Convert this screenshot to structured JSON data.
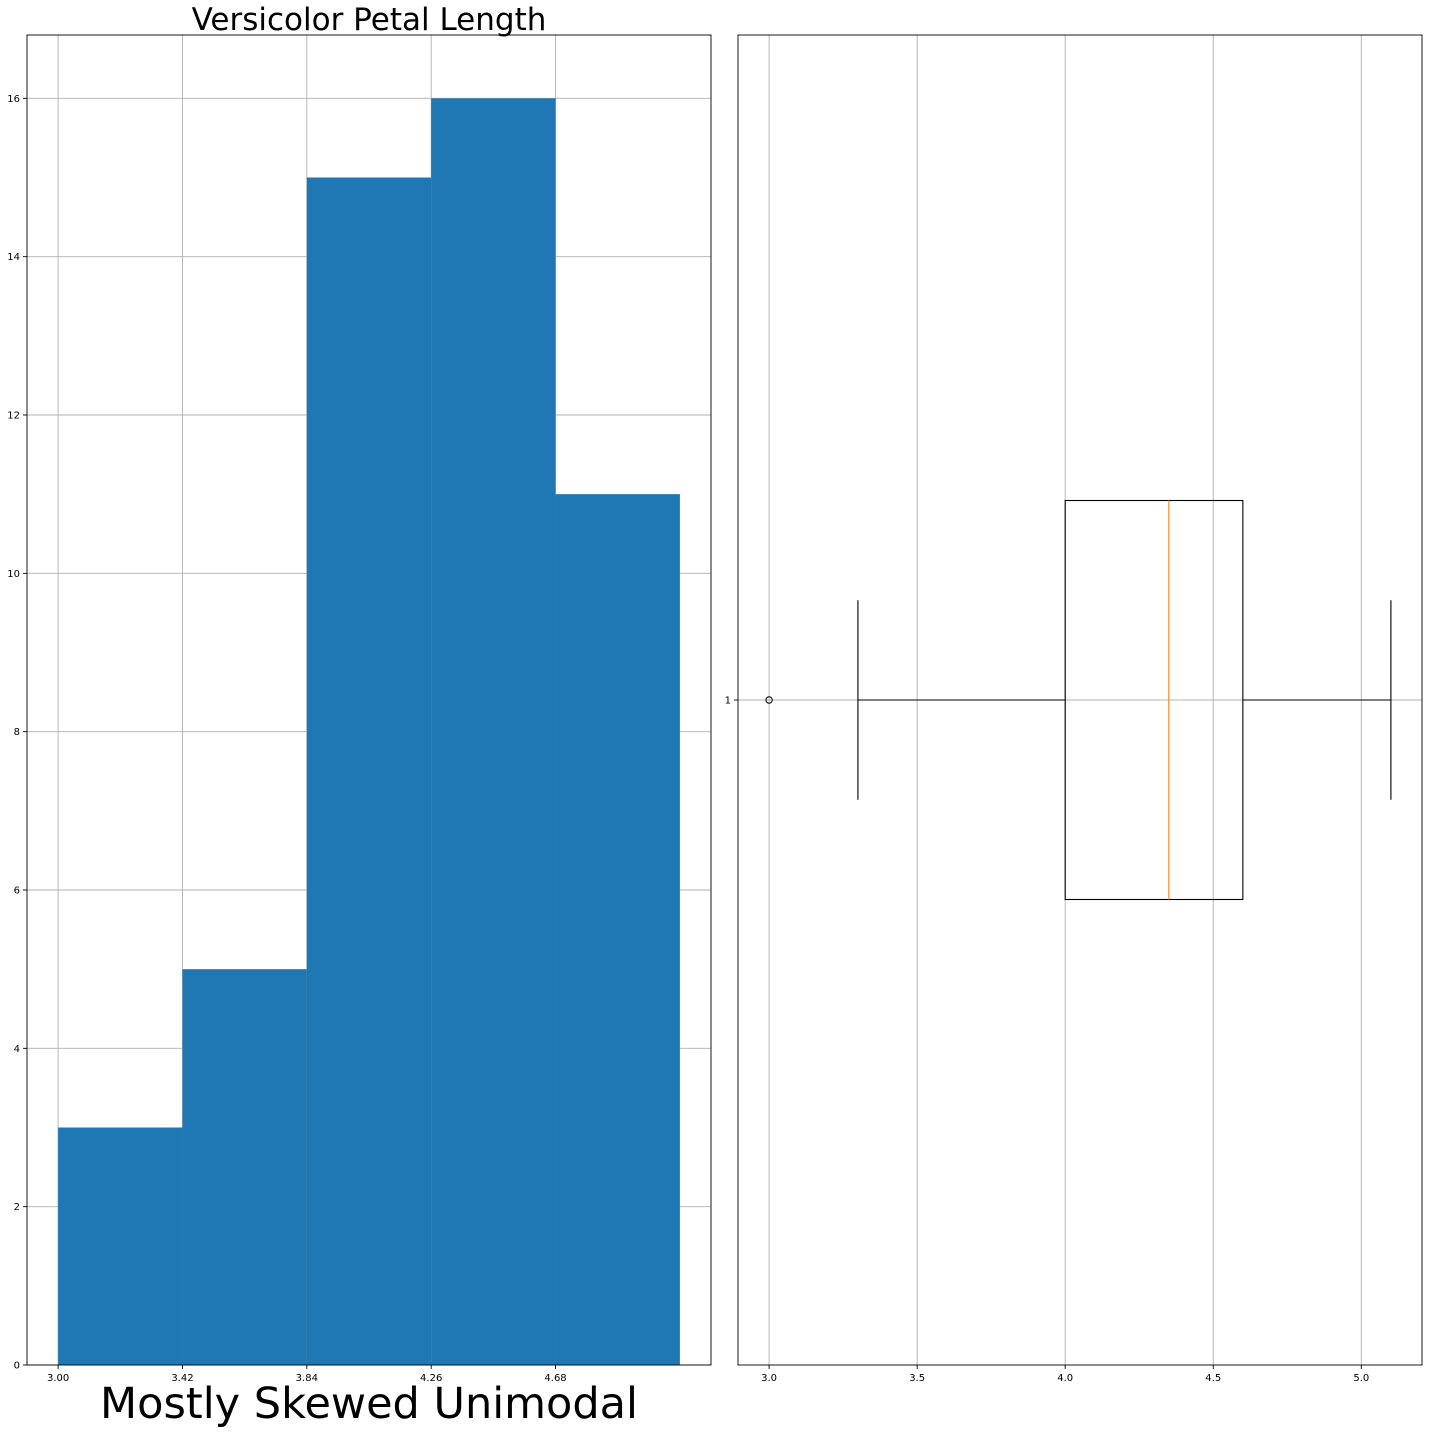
{
  "chart_data": [
    {
      "type": "histogram",
      "title": "Versicolor Petal Length",
      "xlabel": "Mostly Skewed Unimodal",
      "ylabel": "",
      "bin_edges": [
        3.0,
        3.42,
        3.84,
        4.26,
        4.68,
        5.1
      ],
      "counts": [
        3,
        5,
        15,
        16,
        11
      ],
      "xticks": [
        "3.00",
        "3.42",
        "3.84",
        "4.26",
        "4.68"
      ],
      "xtick_values": [
        3.0,
        3.42,
        3.84,
        4.26,
        4.68
      ],
      "yticks": [
        0,
        2,
        4,
        6,
        8,
        10,
        12,
        14,
        16
      ],
      "xlim": [
        2.895,
        5.205
      ],
      "ylim": [
        0,
        16.8
      ],
      "grid": true,
      "color": "#1f77b4"
    },
    {
      "type": "boxplot",
      "orientation": "horizontal",
      "position_label": "1",
      "whisker_low": 3.3,
      "q1": 4.0,
      "median": 4.35,
      "q3": 4.6,
      "whisker_high": 5.1,
      "outliers": [
        3.0
      ],
      "xticks": [
        "3.0",
        "3.5",
        "4.0",
        "4.5",
        "5.0"
      ],
      "xtick_values": [
        3.0,
        3.5,
        4.0,
        4.5,
        5.0
      ],
      "xlim": [
        2.895,
        5.205
      ],
      "ylim": [
        0.5,
        1.5
      ],
      "grid": true,
      "median_color": "#ff7f0e",
      "box_color": "#000000"
    }
  ]
}
